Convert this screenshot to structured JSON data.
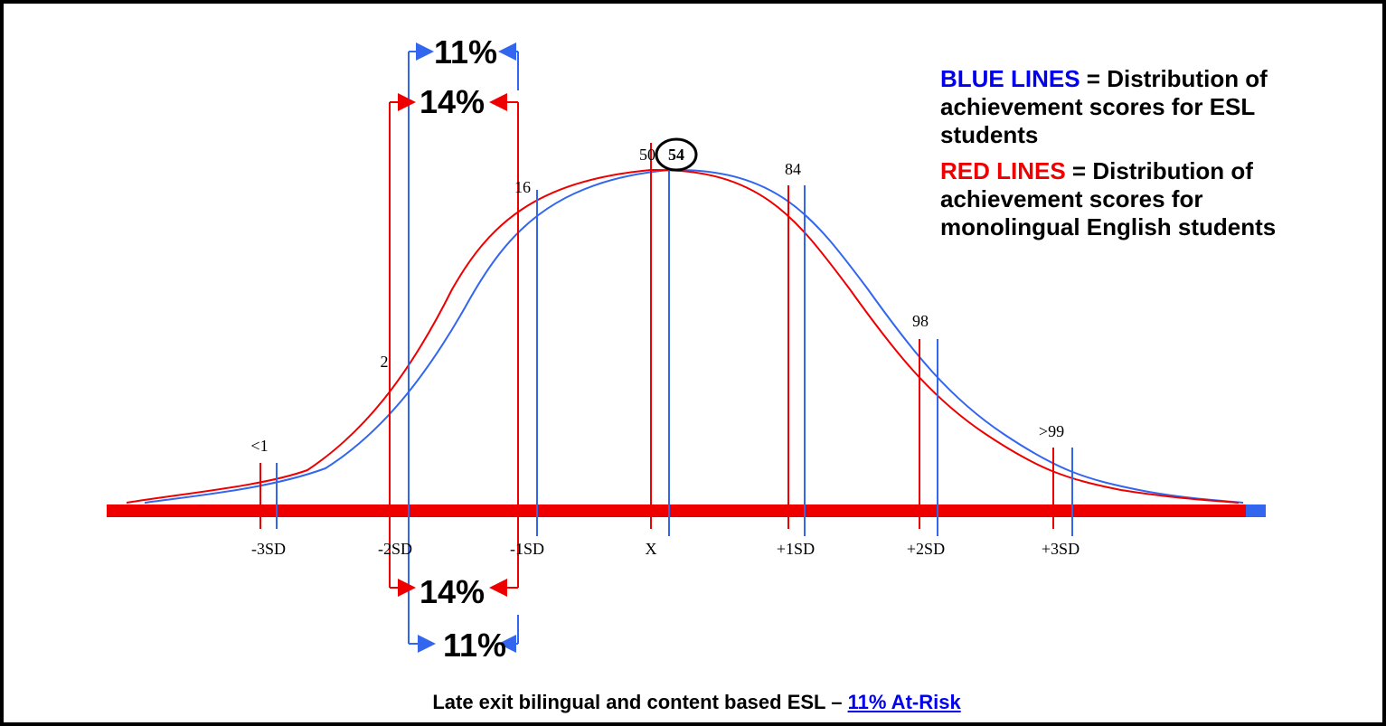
{
  "brackets": {
    "top_blue": "11%",
    "top_red": "14%",
    "bottom_red": "14%",
    "bottom_blue": "11%"
  },
  "percentiles": [
    "<1",
    "2",
    "16",
    "50",
    "54",
    "84",
    "98",
    ">99"
  ],
  "sd_labels": [
    "-3SD",
    "-2SD",
    "-1SD",
    "X",
    "+1SD",
    "+2SD",
    "+3SD"
  ],
  "legend": [
    {
      "key": "BLUE LINES",
      "text": " = Distribution of achievement scores for ESL students"
    },
    {
      "key": "RED LINES",
      "text": " = Distribution of achievement scores for monolingual English students"
    }
  ],
  "caption": {
    "text": "Late exit bilingual and content based ESL – ",
    "link": "11% At-Risk"
  }
}
